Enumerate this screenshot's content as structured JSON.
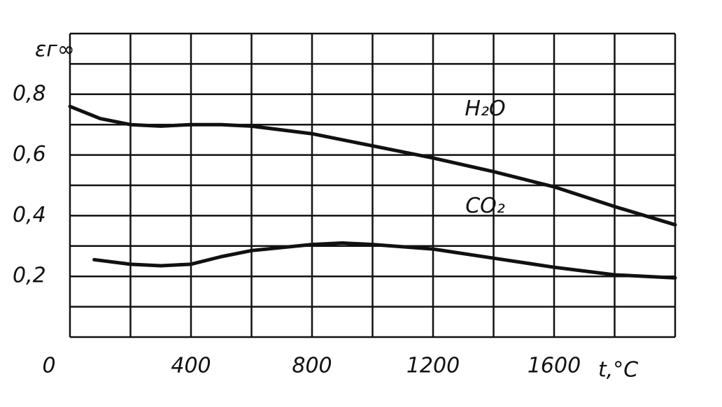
{
  "chart_data": {
    "type": "line",
    "y_label": "εг∞",
    "x_label": "t,°C",
    "xlim": [
      0,
      2000
    ],
    "ylim": [
      0,
      1
    ],
    "xticks": [
      0,
      400,
      800,
      1200,
      1600
    ],
    "yticks": [
      {
        "value": 0.2,
        "label": "0,2"
      },
      {
        "value": 0.4,
        "label": "0,4"
      },
      {
        "value": 0.6,
        "label": "0,6"
      },
      {
        "value": 0.8,
        "label": "0,8"
      }
    ],
    "xgrid": [
      0,
      200,
      400,
      600,
      800,
      1000,
      1200,
      1400,
      1600,
      1800,
      2000
    ],
    "ygrid": [
      0,
      0.1,
      0.2,
      0.3,
      0.4,
      0.5,
      0.6,
      0.7,
      0.8,
      0.9,
      1
    ],
    "grid": true,
    "series": [
      {
        "name": "H₂O",
        "color": "#111111",
        "x": [
          0,
          100,
          200,
          300,
          400,
          500,
          600,
          800,
          1000,
          1200,
          1400,
          1600,
          1800,
          2000
        ],
        "values": [
          0.76,
          0.72,
          0.7,
          0.695,
          0.7,
          0.7,
          0.695,
          0.67,
          0.63,
          0.59,
          0.545,
          0.495,
          0.43,
          0.37
        ]
      },
      {
        "name": "CO₂",
        "color": "#111111",
        "x": [
          80,
          200,
          300,
          400,
          500,
          600,
          800,
          900,
          1000,
          1200,
          1400,
          1600,
          1800,
          2000
        ],
        "values": [
          0.255,
          0.24,
          0.235,
          0.24,
          0.265,
          0.285,
          0.305,
          0.31,
          0.305,
          0.29,
          0.26,
          0.23,
          0.205,
          0.195
        ]
      }
    ]
  }
}
